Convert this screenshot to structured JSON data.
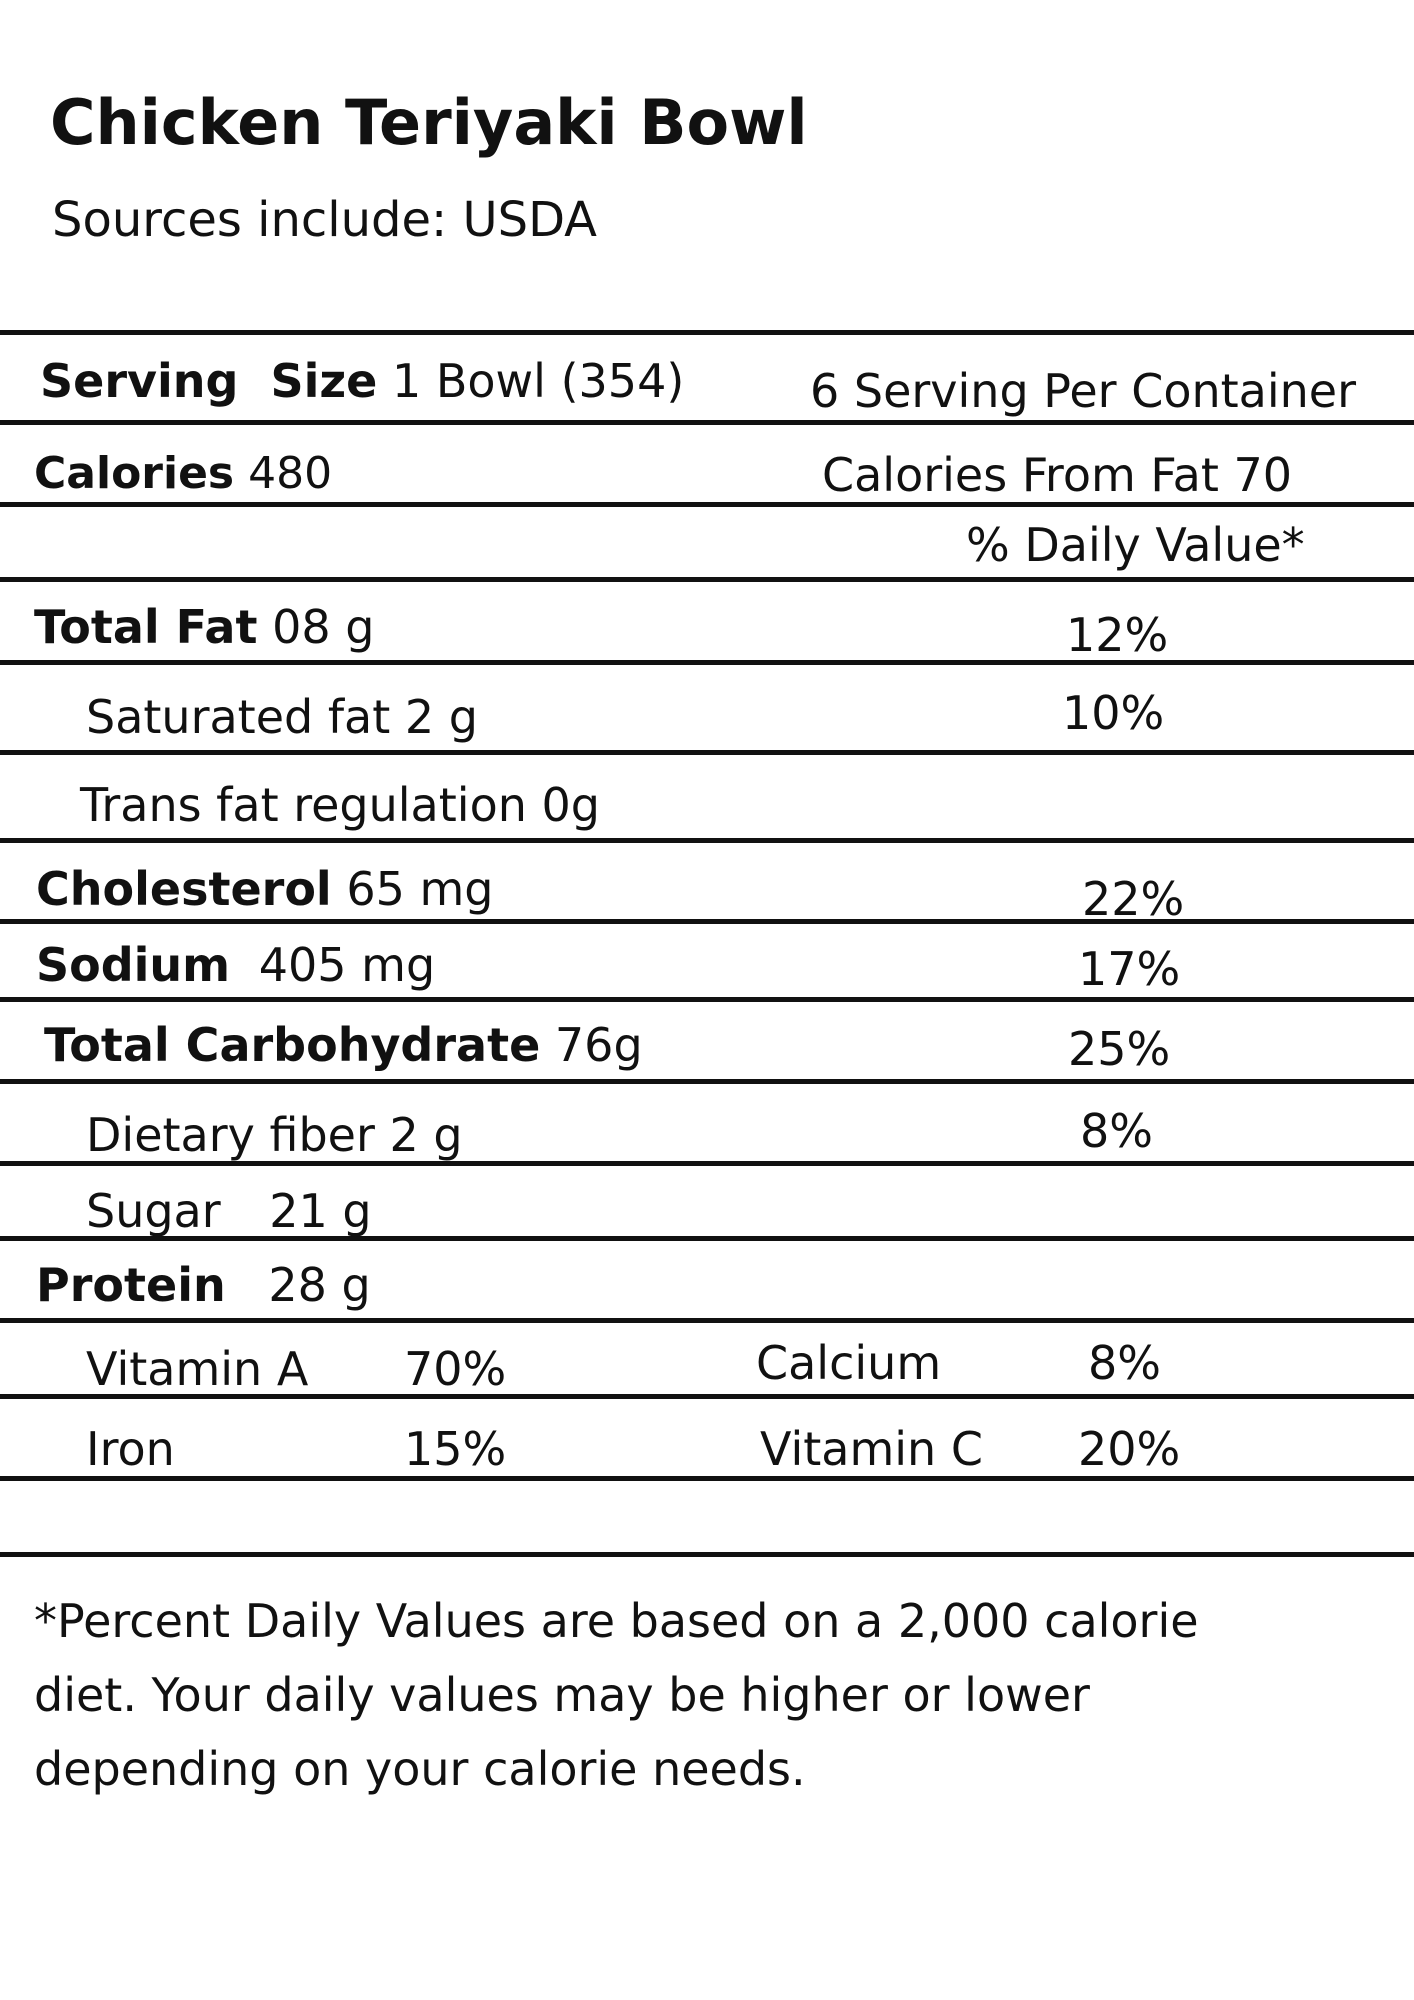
{
  "title": "Chicken Teriyaki Bowl",
  "sources": "Sources include: USDA",
  "serving": {
    "label": "Serving  Size",
    "value": "1 Bowl (354)",
    "per_container": "6 Serving Per Container"
  },
  "calories": {
    "label": "Calories",
    "value": "480",
    "from_fat": "Calories From Fat 70"
  },
  "daily_value_header": "% Daily Value*",
  "nutrients": [
    {
      "label": "Total Fat",
      "value": "08 g",
      "dv": "12%"
    },
    {
      "label": "Saturated fat 2 g",
      "value": "",
      "dv": "10%"
    },
    {
      "label": "Trans fat regulation 0g",
      "value": "",
      "dv": ""
    },
    {
      "label": "Cholesterol",
      "value": "65 mg",
      "dv": "22%"
    },
    {
      "label": "Sodium",
      "value": "405 mg",
      "dv": "17%"
    },
    {
      "label": "Total Carbohydrate",
      "value": "76g",
      "dv": "25%"
    },
    {
      "label": "Dietary fiber 2 g",
      "value": "",
      "dv": "8%"
    },
    {
      "label": "Sugar",
      "value": "21 g",
      "dv": ""
    },
    {
      "label": "Protein",
      "value": "28 g",
      "dv": ""
    }
  ],
  "vitamins": [
    {
      "name": "Vitamin A",
      "value": "70%"
    },
    {
      "name": "Calcium",
      "value": "8%"
    },
    {
      "name": "Iron",
      "value": "15%"
    },
    {
      "name": "Vitamin C",
      "value": "20%"
    }
  ],
  "footnote": [
    "*Percent Daily Values are based on a 2,000 calorie",
    "diet. Your daily values may be higher or lower",
    "depending on your calorie needs."
  ]
}
